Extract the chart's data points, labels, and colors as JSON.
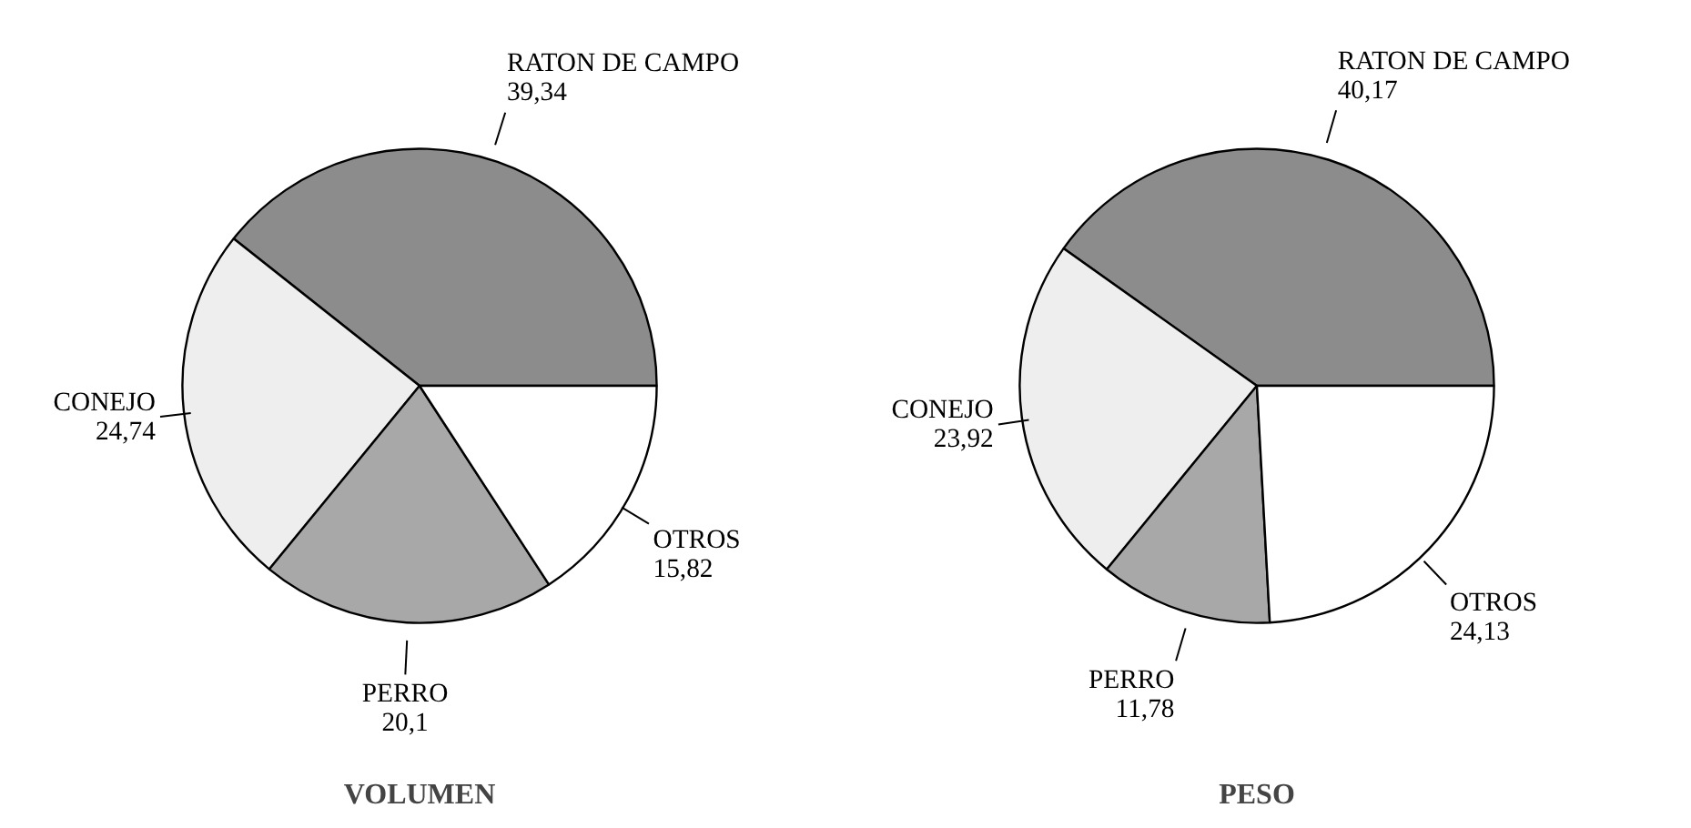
{
  "chart_data": [
    {
      "type": "pie",
      "title": "VOLUMEN",
      "categories": [
        "RATON DE CAMPO",
        "CONEJO",
        "PERRO",
        "OTROS"
      ],
      "values": [
        39.34,
        24.74,
        20.1,
        15.82
      ],
      "value_labels": [
        "39,34",
        "24,74",
        "20,1",
        "15,82"
      ],
      "colors": [
        "#8c8c8c",
        "#eeeeee",
        "#a8a8a8",
        "#ffffff"
      ]
    },
    {
      "type": "pie",
      "title": "PESO",
      "categories": [
        "RATON DE CAMPO",
        "CONEJO",
        "PERRO",
        "OTROS"
      ],
      "values": [
        40.17,
        23.92,
        11.78,
        24.13
      ],
      "value_labels": [
        "40,17",
        "23,92",
        "11,78",
        "24,13"
      ],
      "colors": [
        "#8c8c8c",
        "#eeeeee",
        "#a8a8a8",
        "#ffffff"
      ]
    }
  ]
}
